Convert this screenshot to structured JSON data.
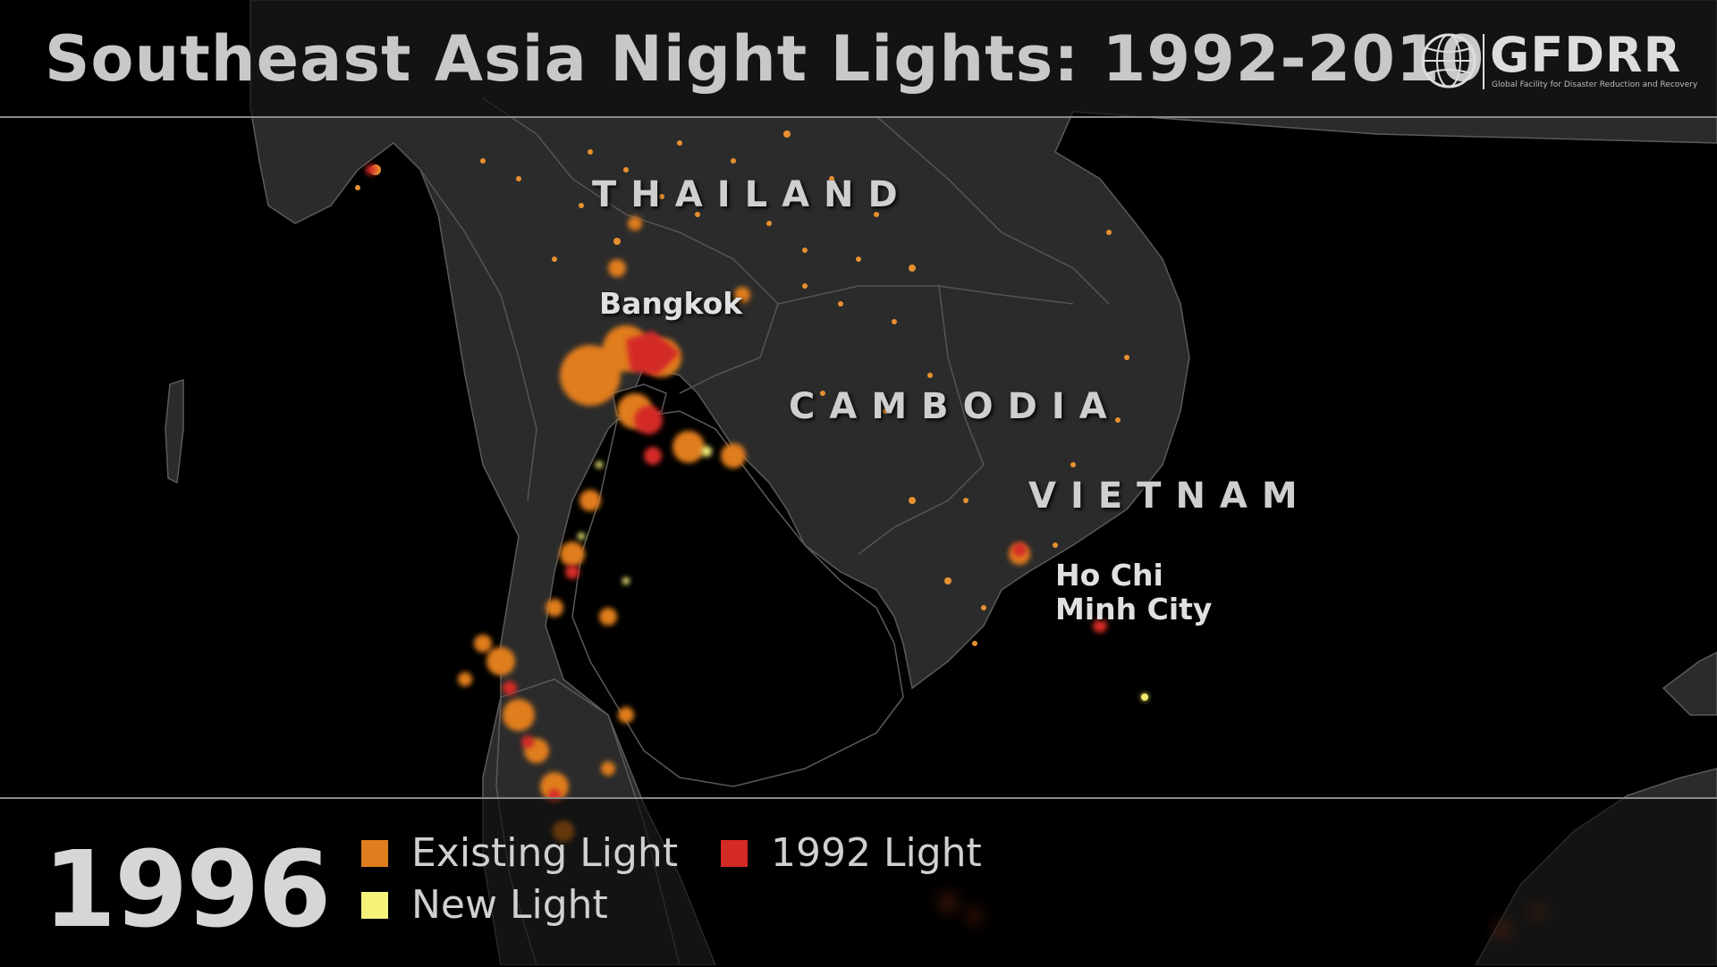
{
  "title": "Southeast Asia Night Lights: 1992-2010",
  "logo": {
    "text": "GFDRR",
    "subtitle": "Global Facility for Disaster Reduction and Recovery",
    "icon": "globe-icon"
  },
  "year": "1996",
  "legend": [
    {
      "label": "Existing Light",
      "color": "#e07d1e"
    },
    {
      "label": "1992 Light",
      "color": "#d42a26"
    },
    {
      "label": "New Light",
      "color": "#f5f27a"
    }
  ],
  "countries": [
    "THAILAND",
    "CAMBODIA",
    "VIETNAM"
  ],
  "cities": {
    "bangkok": "Bangkok",
    "hcmc_line1": "Ho Chi",
    "hcmc_line2": "Minh City"
  },
  "colors": {
    "land": "#2b2b2b",
    "water": "#000000",
    "border": "#555555"
  }
}
